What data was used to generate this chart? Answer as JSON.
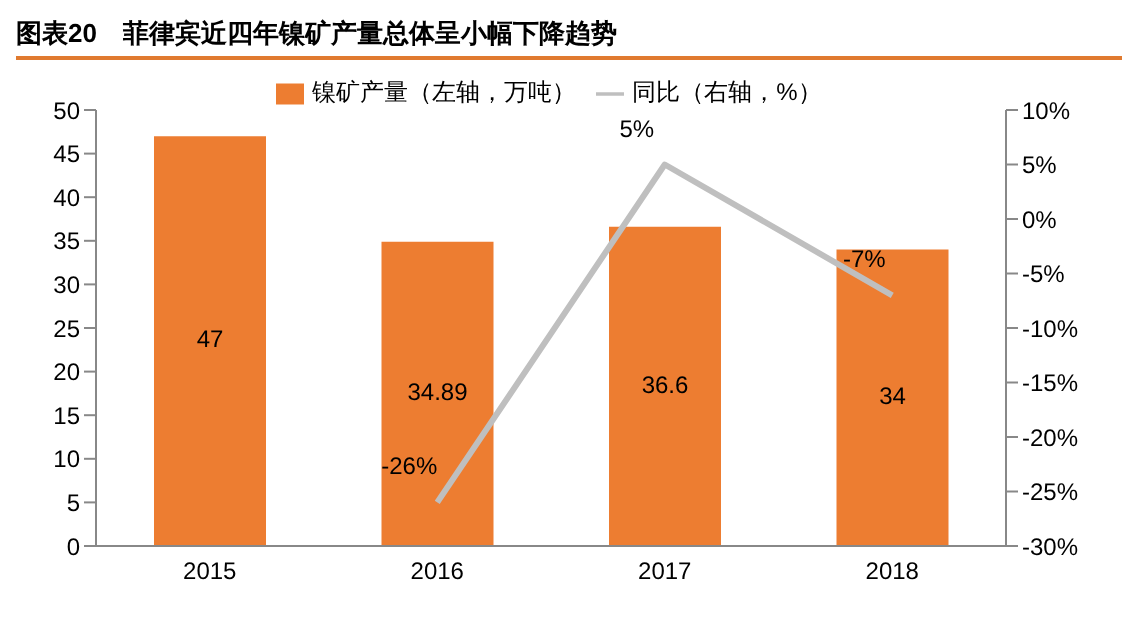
{
  "chart_data": {
    "type": "bar",
    "title": "图表20　菲律宾近四年镍矿产量总体呈小幅下降趋势",
    "categories": [
      "2015",
      "2016",
      "2017",
      "2018"
    ],
    "series": [
      {
        "name": "镍矿产量（左轴，万吨）",
        "color": "#ed7d31",
        "values": [
          47,
          34.89,
          36.6,
          34
        ],
        "value_labels": [
          "47",
          "34.89",
          "36.6",
          "34"
        ]
      },
      {
        "name": "同比（右轴，%）",
        "type": "line",
        "axis": "y2",
        "color": "#bfbfbf",
        "values": [
          null,
          -26,
          5,
          -7
        ],
        "value_labels": [
          null,
          "-26%",
          "5%",
          "-7%"
        ]
      }
    ],
    "ylim": [
      0,
      50
    ],
    "yticks": [
      0,
      5,
      10,
      15,
      20,
      25,
      30,
      35,
      40,
      45,
      50
    ],
    "y2lim": [
      -30,
      10
    ],
    "y2ticks": [
      {
        "value": -30,
        "label": "-30%"
      },
      {
        "value": -25,
        "label": "-25%"
      },
      {
        "value": -20,
        "label": "-20%"
      },
      {
        "value": -15,
        "label": "-15%"
      },
      {
        "value": -10,
        "label": "-10%"
      },
      {
        "value": -5,
        "label": "-5%"
      },
      {
        "value": 0,
        "label": "0%"
      },
      {
        "value": 5,
        "label": "5%"
      },
      {
        "value": 10,
        "label": "10%"
      }
    ],
    "legend": "top",
    "grid": false,
    "marker": "none"
  }
}
